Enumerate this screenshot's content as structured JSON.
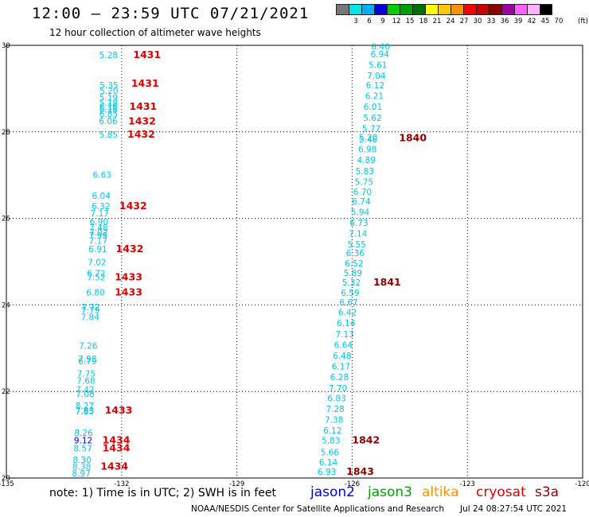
{
  "header": {
    "title": "12:00 – 23:59 UTC 07/21/2021",
    "subtitle": "12 hour collection of altimeter wave heights"
  },
  "colorbar": {
    "colors": [
      "#777777",
      "#00e5e5",
      "#00b0f0",
      "#0000e0",
      "#00d000",
      "#00a000",
      "#007000",
      "#ffff00",
      "#ffc800",
      "#ff9000",
      "#ff0000",
      "#c80000",
      "#900000",
      "#a000a0",
      "#ff60ff",
      "#ffb0ff",
      "#000000"
    ],
    "labels": [
      "",
      "3",
      "6",
      "9",
      "12",
      "15",
      "18",
      "21",
      "24",
      "27",
      "30",
      "33",
      "36",
      "39",
      "42",
      "45",
      "70"
    ],
    "unit": "(ft)"
  },
  "map": {
    "x_ticks": [
      "-135",
      "-132",
      "-129",
      "-126",
      "-123",
      "-120"
    ],
    "y_ticks": [
      "30",
      "28",
      "26",
      "24",
      "22",
      "20"
    ],
    "grid": "dotted",
    "x_range": [
      -135,
      -120
    ],
    "y_range": [
      20,
      30
    ]
  },
  "observations": [
    {
      "lon": -132.34,
      "lat": 29.78,
      "swh": "5.28",
      "color": "#00c8e8"
    },
    {
      "lon": -132.33,
      "lat": 29.08,
      "swh": "5.35",
      "color": "#00c8e8"
    },
    {
      "lon": -132.33,
      "lat": 28.95,
      "swh": "5.20",
      "color": "#00c8e8"
    },
    {
      "lon": -132.34,
      "lat": 28.8,
      "swh": "5.19",
      "color": "#00c8e8"
    },
    {
      "lon": -132.34,
      "lat": 28.68,
      "swh": "5.18",
      "color": "#00c8e8"
    },
    {
      "lon": -132.34,
      "lat": 28.58,
      "swh": "6.16",
      "color": "#00c8e8"
    },
    {
      "lon": -132.34,
      "lat": 28.52,
      "swh": "6.16",
      "color": "#00c8e8"
    },
    {
      "lon": -132.34,
      "lat": 28.42,
      "swh": "6.85",
      "color": "#00c8e8"
    },
    {
      "lon": -132.35,
      "lat": 28.25,
      "swh": "6.06",
      "color": "#00c8e8"
    },
    {
      "lon": -132.34,
      "lat": 27.94,
      "swh": "5.85",
      "color": "#00c8e8"
    },
    {
      "lon": -132.51,
      "lat": 27.01,
      "swh": "6.63",
      "color": "#00c8e8"
    },
    {
      "lon": -132.53,
      "lat": 26.53,
      "swh": "6.04",
      "color": "#00c8e8"
    },
    {
      "lon": -132.54,
      "lat": 26.29,
      "swh": "6.32",
      "color": "#00c8e8"
    },
    {
      "lon": -132.57,
      "lat": 26.12,
      "swh": "7.17",
      "color": "#00c8e8"
    },
    {
      "lon": -132.59,
      "lat": 25.93,
      "swh": "6.90",
      "color": "#00c8e8"
    },
    {
      "lon": -132.6,
      "lat": 25.79,
      "swh": "7.48",
      "color": "#00c8e8"
    },
    {
      "lon": -132.6,
      "lat": 25.68,
      "swh": "7.02",
      "color": "#00c8e8"
    },
    {
      "lon": -132.61,
      "lat": 25.61,
      "swh": "7.99",
      "color": "#00c8e8"
    },
    {
      "lon": -132.61,
      "lat": 25.49,
      "swh": "7.17",
      "color": "#00c8e8"
    },
    {
      "lon": -132.62,
      "lat": 25.29,
      "swh": "6.91",
      "color": "#00c8e8"
    },
    {
      "lon": -132.64,
      "lat": 24.99,
      "swh": "7.02",
      "color": "#00c8e8"
    },
    {
      "lon": -132.66,
      "lat": 24.73,
      "swh": "6.72",
      "color": "#00c8e8"
    },
    {
      "lon": -132.66,
      "lat": 24.64,
      "swh": "7.52",
      "color": "#00c8e8"
    },
    {
      "lon": -132.68,
      "lat": 24.29,
      "swh": "6.80",
      "color": "#00c8e8"
    },
    {
      "lon": -132.81,
      "lat": 23.95,
      "swh": "7.72",
      "color": "#00c8e8"
    },
    {
      "lon": -132.81,
      "lat": 23.88,
      "swh": "7.79",
      "color": "#00c8e8"
    },
    {
      "lon": -132.82,
      "lat": 23.72,
      "swh": "7.84",
      "color": "#00c8e8"
    },
    {
      "lon": -132.87,
      "lat": 23.06,
      "swh": "7.26",
      "color": "#00c8e8"
    },
    {
      "lon": -132.89,
      "lat": 22.76,
      "swh": "7.98",
      "color": "#00c8e8"
    },
    {
      "lon": -132.89,
      "lat": 22.7,
      "swh": "6.79",
      "color": "#00c8e8"
    },
    {
      "lon": -132.92,
      "lat": 22.42,
      "swh": "7.75",
      "color": "#00c8e8"
    },
    {
      "lon": -132.93,
      "lat": 22.25,
      "swh": "7.68",
      "color": "#00c8e8"
    },
    {
      "lon": -132.95,
      "lat": 22.05,
      "swh": "7.42",
      "color": "#00c8e8"
    },
    {
      "lon": -132.95,
      "lat": 21.95,
      "swh": "7.08",
      "color": "#00c8e8"
    },
    {
      "lon": -132.96,
      "lat": 21.67,
      "swh": "8.27",
      "color": "#00c8e8"
    },
    {
      "lon": -132.96,
      "lat": 21.56,
      "swh": "7.83",
      "color": "#00c8e8"
    },
    {
      "lon": -132.96,
      "lat": 21.54,
      "swh": "7.85",
      "color": "#00c8e8"
    },
    {
      "lon": -132.99,
      "lat": 21.05,
      "swh": "8.26",
      "color": "#00c8e8"
    },
    {
      "lon": -133.0,
      "lat": 20.87,
      "swh": "9.12",
      "color": "#0000e0"
    },
    {
      "lon": -133.01,
      "lat": 20.69,
      "swh": "8.57",
      "color": "#00c8e8"
    },
    {
      "lon": -133.03,
      "lat": 20.42,
      "swh": "8.30",
      "color": "#00c8e8"
    },
    {
      "lon": -133.04,
      "lat": 20.27,
      "swh": "8.38",
      "color": "#00c8e8"
    },
    {
      "lon": -133.05,
      "lat": 20.11,
      "swh": "8.97",
      "color": "#00c8e8"
    },
    {
      "lon": -125.26,
      "lat": 29.97,
      "swh": "6.40",
      "color": "#00c8e8"
    },
    {
      "lon": -125.28,
      "lat": 29.8,
      "swh": "6.94",
      "color": "#00c8e8"
    },
    {
      "lon": -125.33,
      "lat": 29.55,
      "swh": "5.61",
      "color": "#00c8e8"
    },
    {
      "lon": -125.37,
      "lat": 29.3,
      "swh": "7.04",
      "color": "#00c8e8"
    },
    {
      "lon": -125.4,
      "lat": 29.08,
      "swh": "6.12",
      "color": "#00c8e8"
    },
    {
      "lon": -125.42,
      "lat": 28.83,
      "swh": "6.21",
      "color": "#00c8e8"
    },
    {
      "lon": -125.46,
      "lat": 28.58,
      "swh": "6.01",
      "color": "#00c8e8"
    },
    {
      "lon": -125.47,
      "lat": 28.33,
      "swh": "5.62",
      "color": "#00c8e8"
    },
    {
      "lon": -125.5,
      "lat": 28.08,
      "swh": "5.77",
      "color": "#00c8e8"
    },
    {
      "lon": -125.58,
      "lat": 27.88,
      "swh": "5.20",
      "color": "#00c8e8"
    },
    {
      "lon": -125.58,
      "lat": 27.83,
      "swh": "5.46",
      "color": "#00c8e8"
    },
    {
      "lon": -125.6,
      "lat": 27.6,
      "swh": "6.98",
      "color": "#00c8e8"
    },
    {
      "lon": -125.63,
      "lat": 27.35,
      "swh": "4.89",
      "color": "#00c8e8"
    },
    {
      "lon": -125.67,
      "lat": 27.1,
      "swh": "5.83",
      "color": "#00c8e8"
    },
    {
      "lon": -125.69,
      "lat": 26.85,
      "swh": "5.75",
      "color": "#00c8e8"
    },
    {
      "lon": -125.73,
      "lat": 26.62,
      "swh": "6.70",
      "color": "#00c8e8"
    },
    {
      "lon": -125.76,
      "lat": 26.4,
      "swh": "6.74",
      "color": "#00c8e8"
    },
    {
      "lon": -125.79,
      "lat": 26.15,
      "swh": "5.94",
      "color": "#00c8e8"
    },
    {
      "lon": -125.82,
      "lat": 25.9,
      "swh": "6.73",
      "color": "#00c8e8"
    },
    {
      "lon": -125.85,
      "lat": 25.65,
      "swh": "7.14",
      "color": "#00c8e8"
    },
    {
      "lon": -125.88,
      "lat": 25.4,
      "swh": "5.55",
      "color": "#00c8e8"
    },
    {
      "lon": -125.92,
      "lat": 25.2,
      "swh": "6.36",
      "color": "#00c8e8"
    },
    {
      "lon": -125.95,
      "lat": 24.96,
      "swh": "6.52",
      "color": "#00c8e8"
    },
    {
      "lon": -125.98,
      "lat": 24.74,
      "swh": "5.89",
      "color": "#00c8e8"
    },
    {
      "lon": -126.02,
      "lat": 24.52,
      "swh": "5.32",
      "color": "#00c8e8"
    },
    {
      "lon": -126.05,
      "lat": 24.28,
      "swh": "6.59",
      "color": "#00c8e8"
    },
    {
      "lon": -126.09,
      "lat": 24.06,
      "swh": "6.67",
      "color": "#00c8e8"
    },
    {
      "lon": -126.12,
      "lat": 23.83,
      "swh": "6.42",
      "color": "#00c8e8"
    },
    {
      "lon": -126.16,
      "lat": 23.58,
      "swh": "6.14",
      "color": "#00c8e8"
    },
    {
      "lon": -126.19,
      "lat": 23.33,
      "swh": "7.13",
      "color": "#00c8e8"
    },
    {
      "lon": -126.23,
      "lat": 23.08,
      "swh": "6.64",
      "color": "#00c8e8"
    },
    {
      "lon": -126.26,
      "lat": 22.83,
      "swh": "6.48",
      "color": "#00c8e8"
    },
    {
      "lon": -126.29,
      "lat": 22.58,
      "swh": "6.17",
      "color": "#00c8e8"
    },
    {
      "lon": -126.33,
      "lat": 22.33,
      "swh": "6.28",
      "color": "#00c8e8"
    },
    {
      "lon": -126.37,
      "lat": 22.08,
      "swh": "7.70",
      "color": "#00c8e8"
    },
    {
      "lon": -126.4,
      "lat": 21.85,
      "swh": "6.83",
      "color": "#00c8e8"
    },
    {
      "lon": -126.44,
      "lat": 21.6,
      "swh": "7.28",
      "color": "#00c8e8"
    },
    {
      "lon": -126.47,
      "lat": 21.35,
      "swh": "7.38",
      "color": "#00c8e8"
    },
    {
      "lon": -126.51,
      "lat": 21.1,
      "swh": "6.12",
      "color": "#00c8e8"
    },
    {
      "lon": -126.55,
      "lat": 20.87,
      "swh": "5.83",
      "color": "#00c8e8"
    },
    {
      "lon": -126.58,
      "lat": 20.6,
      "swh": "5.66",
      "color": "#00c8e8"
    },
    {
      "lon": -126.62,
      "lat": 20.37,
      "swh": "6.14",
      "color": "#00c8e8"
    },
    {
      "lon": -126.66,
      "lat": 20.15,
      "swh": "6.93",
      "color": "#00c8e8"
    }
  ],
  "time_labels": [
    {
      "lon": -131.7,
      "lat": 29.78,
      "text": "1431",
      "color": "#e00000"
    },
    {
      "lon": -131.75,
      "lat": 29.12,
      "text": "1431",
      "color": "#e00000"
    },
    {
      "lon": -131.8,
      "lat": 28.58,
      "text": "1431",
      "color": "#e00000"
    },
    {
      "lon": -131.83,
      "lat": 28.24,
      "text": "1432",
      "color": "#e00000"
    },
    {
      "lon": -131.85,
      "lat": 27.94,
      "text": "1432",
      "color": "#e00000"
    },
    {
      "lon": -132.06,
      "lat": 26.29,
      "text": "1432",
      "color": "#e00000"
    },
    {
      "lon": -132.15,
      "lat": 25.29,
      "text": "1432",
      "color": "#e00000"
    },
    {
      "lon": -132.18,
      "lat": 24.64,
      "text": "1433",
      "color": "#e00000"
    },
    {
      "lon": -132.18,
      "lat": 24.29,
      "text": "1433",
      "color": "#e00000"
    },
    {
      "lon": -132.44,
      "lat": 21.56,
      "text": "1433",
      "color": "#e00000"
    },
    {
      "lon": -132.5,
      "lat": 20.87,
      "text": "1434",
      "color": "#e00000"
    },
    {
      "lon": -132.5,
      "lat": 20.69,
      "text": "1434",
      "color": "#e00000"
    },
    {
      "lon": -132.55,
      "lat": 20.27,
      "text": "1434",
      "color": "#e00000"
    },
    {
      "lon": -124.78,
      "lat": 27.86,
      "text": "1840",
      "color": "#900000"
    },
    {
      "lon": -125.45,
      "lat": 24.52,
      "text": "1841",
      "color": "#900000"
    },
    {
      "lon": -126.0,
      "lat": 20.87,
      "text": "1842",
      "color": "#900000"
    },
    {
      "lon": -126.15,
      "lat": 20.15,
      "text": "1843",
      "color": "#900000"
    }
  ],
  "footer": {
    "note": "note:  1) Time is in UTC;  2) SWH is in feet",
    "legend": [
      {
        "label": "jason2",
        "color": "#0000e0"
      },
      {
        "label": "jason3",
        "color": "#00a000"
      },
      {
        "label": "altika",
        "color": "#ff9000"
      },
      {
        "label": "cryosat",
        "color": "#e00000"
      },
      {
        "label": "s3a",
        "color": "#900000"
      }
    ],
    "credit": "NOAA/NESDIS Center for Satellite Applications and Research",
    "generated": "Jul 24 08:27:54 UTC 2021"
  }
}
